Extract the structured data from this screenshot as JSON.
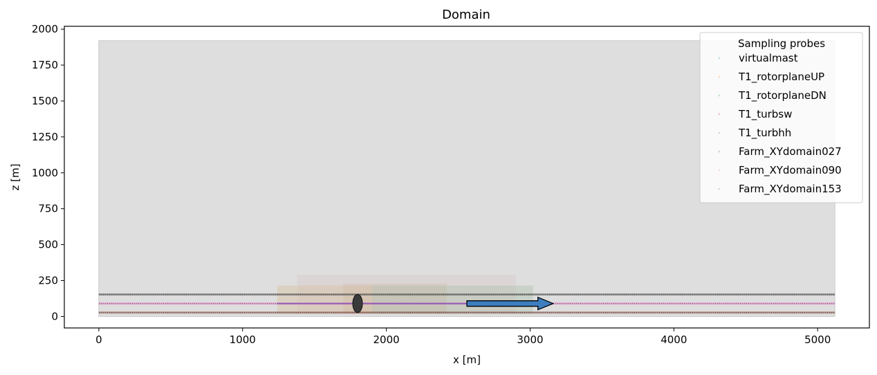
{
  "chart_data": {
    "type": "area",
    "title": "Domain",
    "xlabel": "x [m]",
    "ylabel": "z [m]",
    "xlim": [
      -240,
      5360
    ],
    "ylim": [
      -80,
      2020
    ],
    "xticks": [
      0,
      1000,
      2000,
      3000,
      4000,
      5000
    ],
    "yticks": [
      0,
      250,
      500,
      750,
      1000,
      1250,
      1500,
      1750,
      2000
    ],
    "grid": false,
    "domain_box": {
      "x": [
        0,
        5120
      ],
      "z": [
        0,
        1920
      ],
      "color": "#dedede"
    },
    "turbine": {
      "x": 1800,
      "z": 90,
      "rotor_diameter": 127,
      "color": "#3a3a3a"
    },
    "wind_arrow": {
      "x_start": 2560,
      "x_end": 3160,
      "z": 90,
      "color": "#3d7ebf"
    },
    "probe_lines": [
      {
        "z": 153,
        "x": [
          0,
          5120
        ],
        "color": "#555555"
      },
      {
        "z": 90,
        "x": [
          0,
          5120
        ],
        "color": "#e377c2"
      },
      {
        "z": 27,
        "x": [
          0,
          5120
        ],
        "color": "#8c564b"
      }
    ],
    "probe_regions": [
      {
        "x": [
          1380,
          2900
        ],
        "z": [
          20,
          290
        ],
        "color": "#d4b8b8",
        "opacity": 0.22
      },
      {
        "x": [
          1240,
          3020
        ],
        "z": [
          20,
          215
        ],
        "color": "#b9ccb9",
        "opacity": 0.25
      },
      {
        "x": [
          1240,
          1900
        ],
        "z": [
          20,
          215
        ],
        "color": "#f0b48a",
        "opacity": 0.22
      },
      {
        "x": [
          1700,
          2420
        ],
        "z": [
          20,
          230
        ],
        "color": "#c9a27a",
        "opacity": 0.16
      },
      {
        "x": [
          1900,
          3020
        ],
        "z": [
          20,
          215
        ],
        "color": "#8fb08f",
        "opacity": 0.16
      }
    ],
    "legend": {
      "title": "Sampling probes",
      "placement": "upper right",
      "entries": [
        {
          "label": "virtualmast",
          "color": "#1f77b4"
        },
        {
          "label": "T1_rotorplaneUP",
          "color": "#ff7f0e"
        },
        {
          "label": "T1_rotorplaneDN",
          "color": "#2ca02c"
        },
        {
          "label": "T1_turbsw",
          "color": "#d62728"
        },
        {
          "label": "T1_turbhh",
          "color": "#9467bd"
        },
        {
          "label": "Farm_XYdomain027",
          "color": "#8c564b"
        },
        {
          "label": "Farm_XYdomain090",
          "color": "#e377c2"
        },
        {
          "label": "Farm_XYdomain153",
          "color": "#7f7f7f"
        }
      ]
    }
  }
}
